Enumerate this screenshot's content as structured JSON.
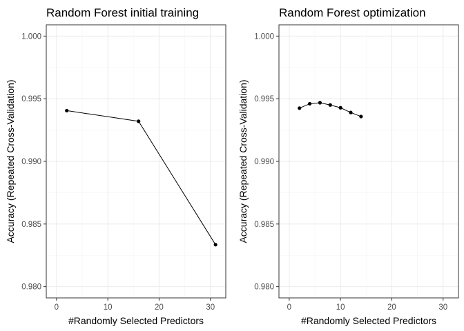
{
  "chart_data": [
    {
      "type": "line",
      "title": "Random Forest initial training",
      "xlabel": "#Randomly Selected Predictors",
      "ylabel": "Accuracy (Repeated Cross-Validation)",
      "xlim": [
        -2,
        33
      ],
      "ylim": [
        0.9791,
        1.0009
      ],
      "x_ticks": [
        0,
        10,
        20,
        30
      ],
      "y_ticks": [
        0.98,
        0.985,
        0.99,
        0.995,
        1.0
      ],
      "x_tick_labels": [
        "0",
        "10",
        "20",
        "30"
      ],
      "y_tick_labels": [
        "0.980",
        "0.985",
        "0.990",
        "0.995",
        "1.000"
      ],
      "series": [
        {
          "name": "Accuracy",
          "x": [
            2,
            16,
            31
          ],
          "y": [
            0.99405,
            0.9932,
            0.98335
          ]
        }
      ]
    },
    {
      "type": "line",
      "title": "Random Forest optimization",
      "xlabel": "#Randomly Selected Predictors",
      "ylabel": "Accuracy (Repeated Cross-Validation)",
      "xlim": [
        -2,
        33
      ],
      "ylim": [
        0.9791,
        1.0009
      ],
      "x_ticks": [
        0,
        10,
        20,
        30
      ],
      "y_ticks": [
        0.98,
        0.985,
        0.99,
        0.995,
        1.0
      ],
      "x_tick_labels": [
        "0",
        "10",
        "20",
        "30"
      ],
      "y_tick_labels": [
        "0.980",
        "0.985",
        "0.990",
        "0.995",
        "1.000"
      ],
      "series": [
        {
          "name": "Accuracy",
          "x": [
            2,
            4,
            6,
            8,
            10,
            12,
            14
          ],
          "y": [
            0.99425,
            0.9946,
            0.99468,
            0.9945,
            0.99428,
            0.9939,
            0.99358
          ]
        }
      ]
    }
  ]
}
